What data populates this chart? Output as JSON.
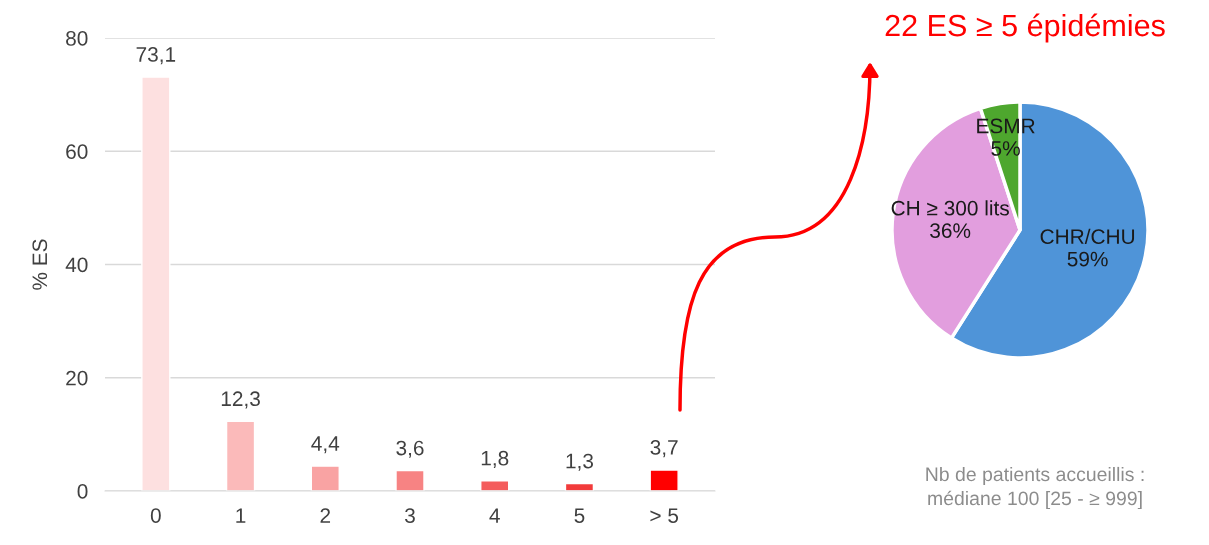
{
  "chart_data": [
    {
      "type": "bar",
      "ylabel": "% ES",
      "categories": [
        "0",
        "1",
        "2",
        "3",
        "4",
        "5",
        "> 5"
      ],
      "values": [
        73.1,
        12.3,
        4.4,
        3.6,
        1.8,
        1.3,
        3.7
      ],
      "value_labels": [
        "73,1",
        "12,3",
        "4,4",
        "3,6",
        "1,8",
        "1,3",
        "3,7"
      ],
      "colors": [
        "#fde0e0",
        "#fbbaba",
        "#f9a3a3",
        "#f78383",
        "#f45c5c",
        "#f23b3b",
        "#ff0000"
      ],
      "ylim": [
        0,
        80
      ],
      "yticks": [
        0,
        20,
        40,
        60,
        80
      ],
      "grid": "y",
      "legend": false
    },
    {
      "type": "pie",
      "title": "22 ES ≥ 5 épidémies",
      "categories": [
        "CHR/CHU",
        "CH ≥ 300 lits",
        "ESMR"
      ],
      "values": [
        59,
        36,
        5
      ],
      "value_labels": [
        "59%",
        "36%",
        "5%"
      ],
      "colors": [
        "#4f94d8",
        "#e29ede",
        "#4ea72e"
      ],
      "annotations": [
        "Nb de patients accueillis :\nmédiane 100 [25 - ≥ 999]"
      ],
      "legend": false
    }
  ]
}
